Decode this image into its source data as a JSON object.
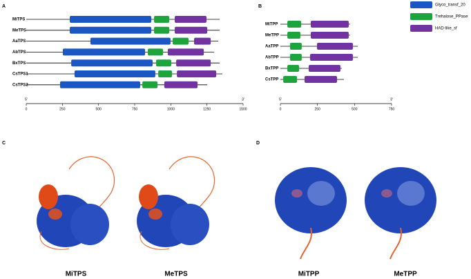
{
  "legend": [
    {
      "name": "Glyco_transf_20",
      "color": "#1a56c4"
    },
    {
      "name": "Trehalose_PPase",
      "color": "#1da43c"
    },
    {
      "name": "HAD-like_sf",
      "color": "#7232a2"
    }
  ],
  "panels": [
    {
      "letter": "A",
      "axis": {
        "start_label": "5'",
        "end_label": "3'",
        "lim": [
          0,
          1500
        ],
        "ticks": [
          0,
          250,
          500,
          750,
          1000,
          1250,
          1500
        ]
      },
      "proteins": [
        {
          "name": "MiTPS",
          "length": 1338,
          "domains": [
            {
              "family": "Glyco_transf_20",
              "start": 301,
              "end": 865
            },
            {
              "family": "Trehalose_PPase",
              "start": 884,
              "end": 989
            },
            {
              "family": "HAD-like_sf",
              "start": 1027,
              "end": 1247
            }
          ]
        },
        {
          "name": "MeTPS",
          "length": 1338,
          "domains": [
            {
              "family": "Glyco_transf_20",
              "start": 301,
              "end": 865
            },
            {
              "family": "Trehalose_PPase",
              "start": 884,
              "end": 989
            },
            {
              "family": "HAD-like_sf",
              "start": 1027,
              "end": 1252
            }
          ]
        },
        {
          "name": "AaTPS",
          "length": 1328,
          "domains": [
            {
              "family": "Glyco_transf_20",
              "start": 444,
              "end": 998
            },
            {
              "family": "Trehalose_PPase",
              "start": 1013,
              "end": 1123
            },
            {
              "family": "HAD-like_sf",
              "start": 1161,
              "end": 1276
            }
          ]
        },
        {
          "name": "AbTPS",
          "length": 1300,
          "domains": [
            {
              "family": "Glyco_transf_20",
              "start": 253,
              "end": 822
            },
            {
              "family": "Trehalose_PPase",
              "start": 841,
              "end": 946
            },
            {
              "family": "HAD-like_sf",
              "start": 979,
              "end": 1228
            }
          ]
        },
        {
          "name": "BxTPS",
          "length": 1338,
          "domains": [
            {
              "family": "Glyco_transf_20",
              "start": 311,
              "end": 874
            },
            {
              "family": "Trehalose_PPase",
              "start": 898,
              "end": 1003
            },
            {
              "family": "HAD-like_sf",
              "start": 1037,
              "end": 1276
            }
          ]
        },
        {
          "name": "CsTPS1",
          "length": 1357,
          "domains": [
            {
              "family": "Glyco_transf_20",
              "start": 334,
              "end": 893
            },
            {
              "family": "Trehalose_PPase",
              "start": 913,
              "end": 1008
            },
            {
              "family": "HAD-like_sf",
              "start": 1042,
              "end": 1314
            }
          ]
        },
        {
          "name": "CsTPS2",
          "length": 1252,
          "domains": [
            {
              "family": "Glyco_transf_20",
              "start": 234,
              "end": 788
            },
            {
              "family": "Trehalose_PPase",
              "start": 803,
              "end": 908
            },
            {
              "family": "HAD-like_sf",
              "start": 955,
              "end": 1185
            }
          ]
        }
      ]
    },
    {
      "letter": "B",
      "axis": {
        "start_label": "5'",
        "end_label": "3'",
        "lim": [
          0,
          750
        ],
        "ticks": [
          0,
          250,
          500,
          750
        ]
      },
      "proteins": [
        {
          "name": "MiTPP",
          "length": 470,
          "domains": [
            {
              "family": "Trehalose_PPase",
              "start": 47,
              "end": 140
            },
            {
              "family": "HAD-like_sf",
              "start": 205,
              "end": 461
            }
          ]
        },
        {
          "name": "MeTPP",
          "length": 470,
          "domains": [
            {
              "family": "Trehalose_PPase",
              "start": 47,
              "end": 135
            },
            {
              "family": "HAD-like_sf",
              "start": 205,
              "end": 461
            }
          ]
        },
        {
          "name": "AaTPP",
          "length": 522,
          "domains": [
            {
              "family": "Trehalose_PPase",
              "start": 65,
              "end": 144
            },
            {
              "family": "HAD-like_sf",
              "start": 247,
              "end": 489
            }
          ]
        },
        {
          "name": "AbTPP",
          "length": 522,
          "domains": [
            {
              "family": "Trehalose_PPase",
              "start": 65,
              "end": 144
            },
            {
              "family": "HAD-like_sf",
              "start": 200,
              "end": 489
            }
          ]
        },
        {
          "name": "BxTPP",
          "length": 415,
          "domains": [
            {
              "family": "Trehalose_PPase",
              "start": 47,
              "end": 126
            },
            {
              "family": "HAD-like_sf",
              "start": 191,
              "end": 405
            }
          ]
        },
        {
          "name": "CsTPP",
          "length": 429,
          "domains": [
            {
              "family": "Trehalose_PPase",
              "start": 19,
              "end": 112
            },
            {
              "family": "HAD-like_sf",
              "start": 163,
              "end": 382
            }
          ]
        }
      ]
    }
  ],
  "structure_panels": [
    {
      "letter": "C",
      "labels": [
        "MiTPS",
        "MeTPS"
      ]
    },
    {
      "letter": "D",
      "labels": [
        "MiTPP",
        "MeTPP"
      ]
    }
  ]
}
